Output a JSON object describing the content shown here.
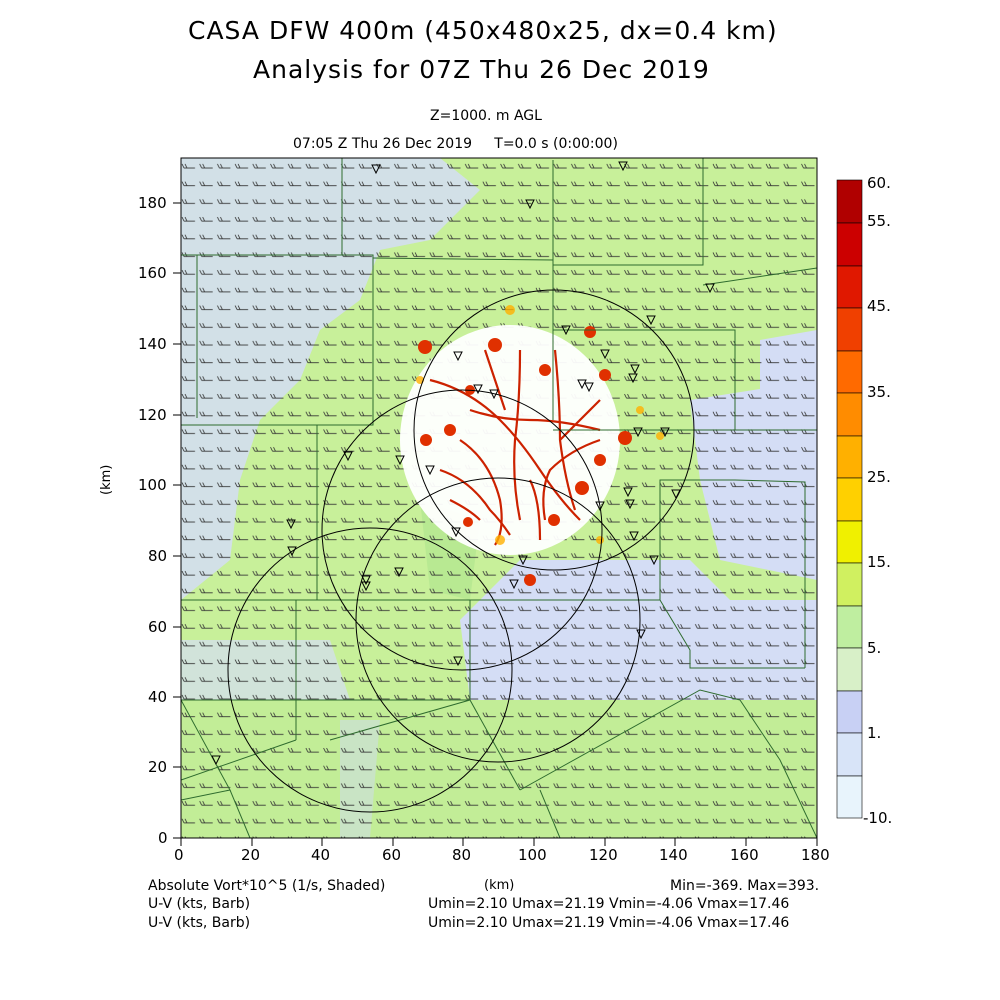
{
  "header": {
    "title_line1": "CASA DFW 400m (450x480x25, dx=0.4 km)",
    "title_line2": "Analysis for 07Z Thu 26 Dec 2019",
    "level": "Z=1000. m AGL",
    "time_line": "07:05 Z Thu 26 Dec 2019     T=0.0 s (0:00:00)"
  },
  "axes": {
    "x_label": "(km)",
    "y_label": "(km)",
    "x_ticks": [
      "0",
      "20",
      "40",
      "60",
      "80",
      "100",
      "120",
      "140",
      "160",
      "180"
    ],
    "y_ticks": [
      "0",
      "20",
      "40",
      "60",
      "80",
      "100",
      "120",
      "140",
      "160",
      "180"
    ],
    "x_range": [
      0,
      180
    ],
    "y_range": [
      0,
      192
    ]
  },
  "colorbar": {
    "labels": [
      "60.",
      "55.",
      "45.",
      "35.",
      "25.",
      "15.",
      "5.",
      "1.",
      "-10."
    ],
    "colors": [
      "#b00000",
      "#cc0000",
      "#e00000",
      "#f03000",
      "#ff5a00",
      "#ff8a00",
      "#ffb000",
      "#ffd000",
      "#f0f000",
      "#d0f070",
      "#c0f090",
      "#b0f0a0",
      "#d8f0c8",
      "#e4e8fa",
      "#d4ddf5",
      "#e4ecfa",
      "#eef4fc"
    ]
  },
  "footer": {
    "field_label": "Absolute Vort*10^5 (1/s, Shaded)",
    "units": "(km)",
    "minmax": "Min=-369. Max=393.",
    "wind1": "U-V (kts, Barb)",
    "wind1_stats": "Umin=2.10 Umax=21.19 Vmin=-4.06 Vmax=17.46",
    "wind2": "U-V (kts, Barb)",
    "wind2_stats": "Umin=2.10 Umax=21.19 Vmin=-4.06 Vmax=17.46"
  },
  "map": {
    "radar_rings_km": [
      {
        "cx": 100,
        "cy": 115,
        "r": 40
      },
      {
        "cx": 80,
        "cy": 90,
        "r": 40
      },
      {
        "cx": 90,
        "cy": 65,
        "r": 40
      },
      {
        "cx": 55,
        "cy": 50,
        "r": 40
      }
    ],
    "colors": {
      "green": "#c8f09a",
      "blue": "#d4ddf5",
      "county_line": "#2e6b2e"
    }
  }
}
